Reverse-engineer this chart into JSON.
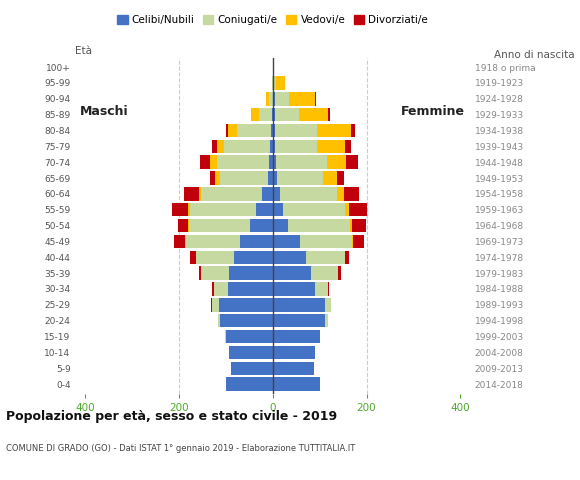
{
  "age_groups": [
    "0-4",
    "5-9",
    "10-14",
    "15-19",
    "20-24",
    "25-29",
    "30-34",
    "35-39",
    "40-44",
    "45-49",
    "50-54",
    "55-59",
    "60-64",
    "65-69",
    "70-74",
    "75-79",
    "80-84",
    "85-89",
    "90-94",
    "95-99",
    "100+"
  ],
  "birth_years": [
    "2014-2018",
    "2009-2013",
    "2004-2008",
    "1999-2003",
    "1994-1998",
    "1989-1993",
    "1984-1988",
    "1979-1983",
    "1974-1978",
    "1969-1973",
    "1964-1968",
    "1959-1963",
    "1954-1958",
    "1949-1953",
    "1944-1948",
    "1939-1943",
    "1934-1938",
    "1929-1933",
    "1924-1928",
    "1919-1923",
    "1918 o prima"
  ],
  "male": {
    "celibe": [
      100,
      88,
      92,
      100,
      112,
      115,
      95,
      92,
      82,
      70,
      48,
      35,
      22,
      10,
      8,
      5,
      3,
      2,
      0,
      0,
      0
    ],
    "coniugato": [
      0,
      0,
      0,
      2,
      5,
      15,
      30,
      60,
      82,
      115,
      130,
      140,
      130,
      102,
      110,
      98,
      72,
      28,
      8,
      2,
      0
    ],
    "vedovo": [
      0,
      0,
      0,
      0,
      0,
      0,
      0,
      0,
      0,
      2,
      2,
      5,
      5,
      10,
      15,
      15,
      20,
      15,
      5,
      0,
      0
    ],
    "divorziato": [
      0,
      0,
      0,
      0,
      0,
      2,
      5,
      5,
      12,
      22,
      22,
      35,
      32,
      12,
      22,
      12,
      5,
      2,
      0,
      0,
      0
    ]
  },
  "female": {
    "nubile": [
      100,
      88,
      90,
      100,
      112,
      112,
      90,
      82,
      72,
      58,
      32,
      22,
      15,
      10,
      8,
      5,
      5,
      5,
      5,
      2,
      0
    ],
    "coniugata": [
      0,
      0,
      0,
      2,
      5,
      12,
      28,
      58,
      82,
      112,
      132,
      132,
      122,
      98,
      108,
      90,
      90,
      52,
      30,
      5,
      0
    ],
    "vedova": [
      0,
      0,
      0,
      0,
      0,
      0,
      0,
      0,
      0,
      2,
      5,
      8,
      15,
      30,
      40,
      60,
      72,
      60,
      55,
      20,
      2
    ],
    "divorziata": [
      0,
      0,
      0,
      0,
      0,
      0,
      2,
      5,
      8,
      22,
      30,
      40,
      32,
      15,
      25,
      12,
      8,
      5,
      2,
      0,
      0
    ]
  },
  "colors": {
    "celibe": "#4472c4",
    "coniugato": "#c5d9a0",
    "vedovo": "#ffc000",
    "divorziato": "#c0000b"
  },
  "title": "Popolazione per età, sesso e stato civile - 2019",
  "subtitle": "COMUNE DI GRADO (GO) - Dati ISTAT 1° gennaio 2019 - Elaborazione TUTTITALIA.IT",
  "label_maschi": "Maschi",
  "label_femmine": "Femmine",
  "legend_labels": [
    "Celibi/Nubili",
    "Coniugati/e",
    "Vedovi/e",
    "Divorziati/e"
  ],
  "xlim": 420,
  "tick_color": "#4ea82a",
  "background_color": "#ffffff",
  "grid_color": "#cccccc",
  "axis_label_eta": "Età",
  "axis_label_anno": "Anno di nascita"
}
